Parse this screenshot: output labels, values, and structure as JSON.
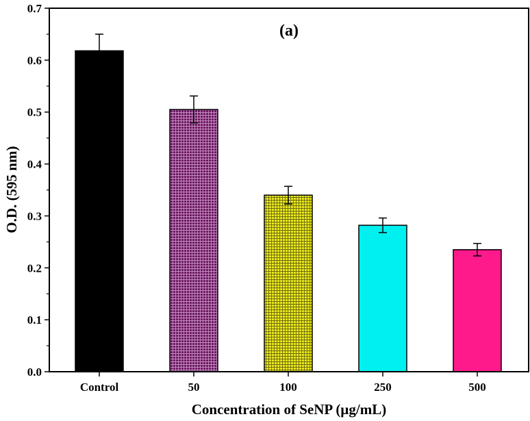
{
  "chart_data": {
    "type": "bar",
    "panel_label": "(a)",
    "xlabel": "Concentration of SeNP (µg/mL)",
    "ylabel": "O.D. (595 nm)",
    "ylim": [
      0,
      0.7
    ],
    "yticks": [
      "0.0",
      "0.1",
      "0.2",
      "0.3",
      "0.4",
      "0.5",
      "0.6",
      "0.7"
    ],
    "categories": [
      "Control",
      "50",
      "100",
      "250",
      "500"
    ],
    "values": [
      0.618,
      0.505,
      0.34,
      0.282,
      0.235
    ],
    "errors": [
      0.032,
      0.026,
      0.017,
      0.014,
      0.012
    ],
    "colors": [
      "#000000",
      "#7a1a6e",
      "#e8e617",
      "#00f0f0",
      "#ff1a8c"
    ],
    "patterns": [
      "solid",
      "grid",
      "grid",
      "solid",
      "solid"
    ],
    "grid": false,
    "legend": "none"
  }
}
